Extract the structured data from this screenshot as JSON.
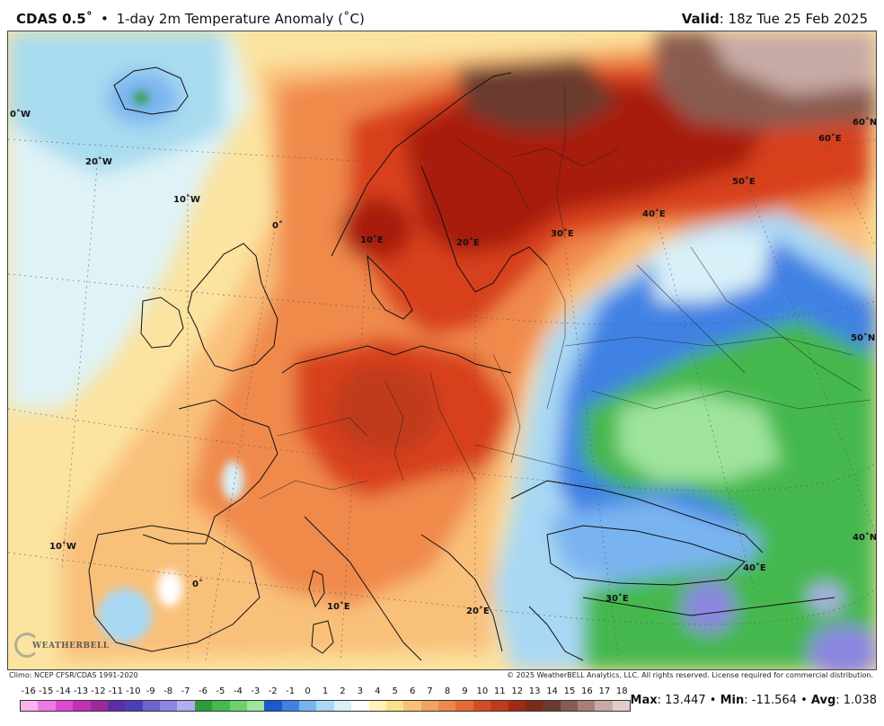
{
  "header": {
    "model": "CDAS 0.5˚",
    "bullet": "•",
    "product": "1-day 2m Temperature Anomaly (˚C)",
    "valid_label": "Valid",
    "valid_value": ": 18z Tue 25 Feb 2025"
  },
  "map": {
    "graticule_labels": {
      "lon_0w_top": "0˚W",
      "lon_20w": "20˚W",
      "lon_10w_top": "10˚W",
      "lon_0_top": "0˚",
      "lon_10e_top": "10˚E",
      "lon_20e_top": "20˚E",
      "lon_30e_top": "30˚E",
      "lon_40e_top": "40˚E",
      "lon_50e": "50˚E",
      "lon_60e": "60˚E",
      "lat_60n": "60˚N",
      "lat_50n": "50˚N",
      "lat_40n": "40˚N",
      "lon_10w_bottom": "10˚W",
      "lon_0_bottom": "0˚",
      "lon_10e_bottom": "10˚E",
      "lon_20e_bottom": "20˚E",
      "lon_30e_bottom": "30˚E",
      "lon_40e_bottom": "40˚E"
    },
    "colors": {
      "ocean_base": "#fbe3a0",
      "warm_light": "#f9c07a",
      "warm": "#f08a4b",
      "hot": "#d8401f",
      "very_hot": "#a81e10",
      "extreme": "#6b3a2e",
      "max_brown": "#8a6a60",
      "pale_cold": "#dff3f7",
      "cold_cyan": "#a8dcef",
      "cold_blue": "#3f7fd8",
      "green": "#2fb84a",
      "light_green": "#7fd68a",
      "purple": "#8a6fd8"
    }
  },
  "footer": {
    "climo": "Climo: NCEP CFSR/CDAS 1991-2020",
    "copyright": "© 2025 WeatherBELL Analytics, LLC. All rights reserved. License required for commercial distribution.",
    "logo_text": "WEATHERBELL"
  },
  "legend": {
    "labels": [
      "-16",
      "-15",
      "-14",
      "-13",
      "-12",
      "-11",
      "-10",
      "-9",
      "-8",
      "-7",
      "-6",
      "-5",
      "-4",
      "-3",
      "-2",
      "-1",
      "0",
      "1",
      "2",
      "3",
      "4",
      "5",
      "6",
      "7",
      "8",
      "9",
      "10",
      "11",
      "12",
      "13",
      "14",
      "15",
      "16",
      "17",
      "18"
    ],
    "colors": [
      "#f7b4ee",
      "#ef7ae2",
      "#e048d2",
      "#c42fb8",
      "#9a2a9c",
      "#5b2ea8",
      "#4a3fb8",
      "#6c63d0",
      "#8c86e0",
      "#b0aeee",
      "#2e9c3a",
      "#45b84e",
      "#6fd072",
      "#9fe49e",
      "#1a5ad0",
      "#3f82e4",
      "#7ab4f0",
      "#a9d8f4",
      "#d8f0f8",
      "#ffffff",
      "#fff4b8",
      "#fde08a",
      "#f9c07a",
      "#f4a262",
      "#ee8748",
      "#e66a34",
      "#d84c24",
      "#c03a1c",
      "#a02a12",
      "#7d2a18",
      "#6b3a2e",
      "#8a5c50",
      "#a88078",
      "#c8aaa4",
      "#e0ccc8"
    ]
  },
  "stats": {
    "max_label": "Max",
    "max_value": ": 13.447",
    "sep1": " • ",
    "min_label": "Min",
    "min_value": ": -11.564",
    "sep2": " • ",
    "avg_label": "Avg",
    "avg_value": ": 1.038"
  }
}
